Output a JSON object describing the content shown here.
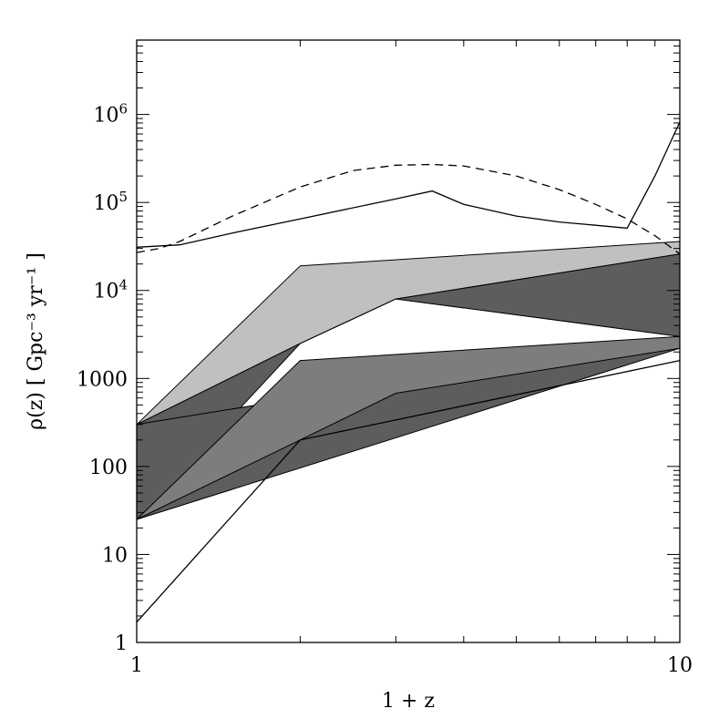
{
  "chart_data": {
    "type": "area",
    "xlabel": "1 + z",
    "ylabel": "ρ(z) [ Gpc⁻³ yr⁻¹ ]",
    "xscale": "log",
    "yscale": "log",
    "xlim": [
      1,
      10
    ],
    "ylim": [
      1,
      7000000
    ],
    "grid": false,
    "x_ticks": [
      {
        "value": 1,
        "label": "1"
      },
      {
        "value": 10,
        "label": "10"
      }
    ],
    "y_ticks": [
      {
        "value": 1,
        "label": "1"
      },
      {
        "value": 10,
        "label": "10"
      },
      {
        "value": 100,
        "label": "100"
      },
      {
        "value": 1000,
        "label": "1000"
      },
      {
        "value": 10000,
        "label": "10",
        "exponent": "4"
      },
      {
        "value": 100000,
        "label": "10",
        "exponent": "5"
      },
      {
        "value": 1000000,
        "label": "10",
        "exponent": "6"
      }
    ],
    "bands": [
      {
        "fill": "#c0c0c0",
        "upper": [
          [
            1,
            300
          ],
          [
            2,
            19000
          ],
          [
            10,
            36000
          ]
        ],
        "lower": [
          [
            1,
            300
          ],
          [
            2,
            2500
          ],
          [
            3,
            8000
          ],
          [
            10,
            26000
          ]
        ]
      },
      {
        "fill": "#5d5d5d",
        "upper": [
          [
            1,
            300
          ],
          [
            2,
            2500
          ],
          [
            3,
            8000
          ],
          [
            10,
            26000
          ]
        ],
        "lower": [
          [
            1,
            25
          ],
          [
            2,
            2500
          ],
          [
            3,
            8000
          ],
          [
            10,
            3000
          ]
        ]
      },
      {
        "fill": "#5d5d5d",
        "upper": [
          [
            1,
            300
          ],
          [
            10,
            3000
          ]
        ],
        "lower": [
          [
            1,
            25
          ],
          [
            10,
            2200
          ]
        ]
      },
      {
        "fill": "#7d7d7d",
        "upper": [
          [
            1,
            25
          ],
          [
            2,
            1600
          ],
          [
            10,
            3000
          ]
        ],
        "lower": [
          [
            1,
            25
          ],
          [
            2,
            200
          ],
          [
            3,
            680
          ],
          [
            10,
            2200
          ]
        ]
      }
    ],
    "lines": [
      {
        "style": "solid",
        "points": [
          [
            1,
            1.7
          ],
          [
            2,
            200
          ],
          [
            10,
            1600
          ]
        ]
      },
      {
        "style": "solid",
        "points": [
          [
            1,
            31000
          ],
          [
            1.2,
            33000
          ],
          [
            1.5,
            45000
          ],
          [
            2,
            65000
          ],
          [
            3,
            110000
          ],
          [
            3.5,
            135000
          ],
          [
            4,
            95000
          ],
          [
            5,
            70000
          ],
          [
            6,
            60000
          ],
          [
            7,
            55000
          ],
          [
            8,
            51000
          ],
          [
            9,
            200000
          ],
          [
            10,
            820000
          ]
        ]
      },
      {
        "style": "dashed",
        "points": [
          [
            1,
            27000
          ],
          [
            1.1,
            30000
          ],
          [
            1.2,
            36000
          ],
          [
            1.5,
            70000
          ],
          [
            2,
            150000
          ],
          [
            2.5,
            230000
          ],
          [
            3,
            265000
          ],
          [
            3.5,
            270000
          ],
          [
            4,
            260000
          ],
          [
            5,
            200000
          ],
          [
            6,
            140000
          ],
          [
            7,
            95000
          ],
          [
            8,
            65000
          ],
          [
            9,
            42000
          ],
          [
            10,
            26000
          ]
        ]
      }
    ]
  }
}
